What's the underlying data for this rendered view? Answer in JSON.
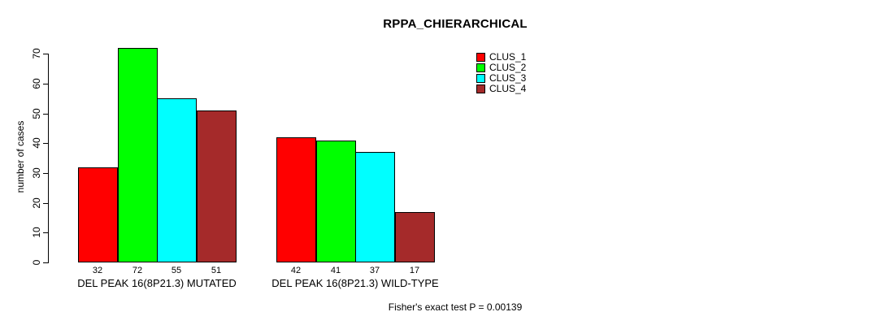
{
  "chart_data": {
    "type": "bar",
    "title": "RPPA_CHIERARCHICAL",
    "ylabel": "number of cases",
    "xlabel": "",
    "ylim": [
      0,
      72
    ],
    "yticks": [
      0,
      10,
      20,
      30,
      40,
      50,
      60,
      70
    ],
    "grid": false,
    "legend_position": "top-right-outside",
    "bar_value_labels": true,
    "series": [
      {
        "name": "CLUS_1",
        "color": "#FF0000"
      },
      {
        "name": "CLUS_2",
        "color": "#00FF00"
      },
      {
        "name": "CLUS_3",
        "color": "#00FFFF"
      },
      {
        "name": "CLUS_4",
        "color": "#A52A2A"
      }
    ],
    "groups": [
      {
        "label": "DEL PEAK 16(8P21.3) MUTATED",
        "values": [
          32,
          72,
          55,
          51
        ]
      },
      {
        "label": "DEL PEAK 16(8P21.3) WILD-TYPE",
        "values": [
          42,
          41,
          37,
          17
        ]
      }
    ],
    "footnote": "Fisher's exact test P = 0.00139"
  }
}
